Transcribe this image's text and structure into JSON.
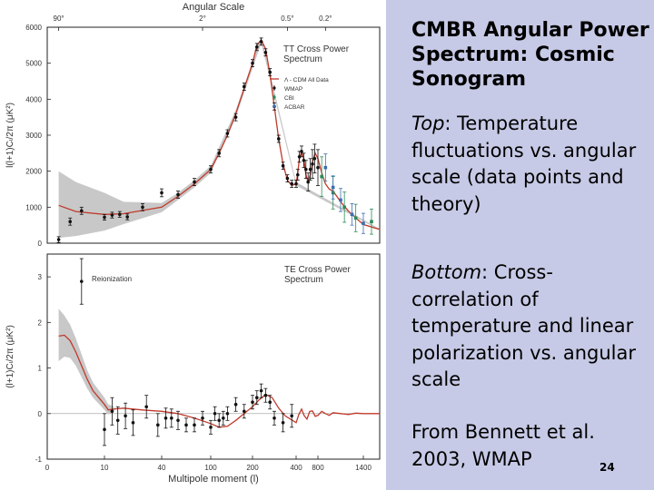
{
  "slide": {
    "title": "CMBR Angular Power Spectrum: Cosmic Sonogram",
    "top_label": "Top",
    "top_text": ": Temperature fluctuations vs. angular scale (data points and theory)",
    "bottom_label": "Bottom",
    "bottom_text": ": Cross-correlation of temperature and linear polarization vs. angular scale",
    "credit": "From Bennett et al. 2003, WMAP",
    "number": "24",
    "colors": {
      "panel_bg": "#c7cae6",
      "theory": "#c0392b",
      "band": "#c8c8c8",
      "cbi": "#2e8b57",
      "acbar": "#3a6fb0"
    }
  },
  "chart_data": [
    {
      "type": "line",
      "panel": "top",
      "title": "TT Cross Power Spectrum",
      "top_axis_title": "Angular Scale",
      "top_ticks": [
        {
          "l": 2,
          "label": "90°"
        },
        {
          "l": 90,
          "label": "2°"
        },
        {
          "l": 360,
          "label": "0.5°"
        },
        {
          "l": 900,
          "label": "0.2°"
        }
      ],
      "ylabel": "l(l+1)Cₗ/2π (μK²)",
      "ylim": [
        0,
        6000
      ],
      "yticks": [
        0,
        1000,
        2000,
        3000,
        4000,
        5000,
        6000
      ],
      "legend": [
        "Λ - CDM All Data",
        "WMAP",
        "CBI",
        "ACBAR"
      ],
      "theory": {
        "l": [
          2,
          5,
          10,
          20,
          40,
          60,
          80,
          100,
          120,
          140,
          160,
          180,
          200,
          220,
          240,
          260,
          280,
          300,
          320,
          340,
          360,
          380,
          400,
          430,
          460,
          500,
          540,
          580,
          620,
          660,
          700,
          750,
          800,
          850,
          900,
          950,
          1000,
          1100,
          1200,
          1300,
          1400,
          1500
        ],
        "value": [
          1050,
          880,
          800,
          820,
          1000,
          1300,
          1650,
          2050,
          2500,
          3000,
          3600,
          4300,
          5000,
          5500,
          5650,
          5400,
          4700,
          3800,
          2900,
          2200,
          1750,
          1600,
          1650,
          1950,
          2350,
          2550,
          2350,
          1900,
          1700,
          1900,
          2250,
          2500,
          2350,
          1950,
          1650,
          1500,
          1450,
          1150,
          900,
          700,
          520,
          380
        ]
      },
      "band": {
        "l": [
          2,
          5,
          10,
          20,
          40,
          60,
          80,
          100,
          160,
          240,
          400,
          1500
        ],
        "upper": [
          2000,
          1700,
          1400,
          1150,
          1120,
          1400,
          1750,
          2150,
          3700,
          5750,
          1700,
          400
        ],
        "lower": [
          150,
          200,
          350,
          530,
          860,
          1200,
          1550,
          1950,
          3500,
          5550,
          1600,
          360
        ]
      },
      "series": [
        {
          "name": "WMAP",
          "x": [
            2,
            4,
            6,
            10,
            14,
            18,
            22,
            30,
            40,
            60,
            80,
            100,
            120,
            140,
            160,
            180,
            200,
            220,
            240,
            260,
            280,
            300,
            320,
            340,
            360,
            380,
            400,
            430,
            460,
            500,
            540,
            580,
            620,
            660,
            700,
            740,
            800
          ],
          "y": [
            100,
            600,
            900,
            720,
            780,
            800,
            730,
            1000,
            1400,
            1350,
            1700,
            2050,
            2500,
            3050,
            3500,
            4350,
            5000,
            5450,
            5600,
            5300,
            4750,
            3800,
            2900,
            2150,
            1800,
            1650,
            1650,
            1900,
            2400,
            2550,
            2300,
            2050,
            1700,
            2050,
            2200,
            2350,
            2100
          ],
          "err": [
            80,
            100,
            100,
            80,
            80,
            80,
            80,
            100,
            110,
            100,
            100,
            100,
            100,
            100,
            100,
            100,
            100,
            100,
            100,
            100,
            100,
            100,
            100,
            100,
            100,
            100,
            100,
            150,
            150,
            150,
            200,
            250,
            250,
            300,
            400,
            400,
            500
          ]
        },
        {
          "name": "CBI",
          "x": [
            850,
            1000,
            1150,
            1300,
            1450
          ],
          "y": [
            1850,
            1400,
            1000,
            700,
            600
          ],
          "err": [
            550,
            450,
            420,
            380,
            350
          ]
        },
        {
          "name": "ACBAR",
          "x": [
            900,
            1000,
            1100,
            1250,
            1400
          ],
          "y": [
            2100,
            1550,
            1200,
            800,
            550
          ],
          "err": [
            380,
            320,
            320,
            300,
            280
          ]
        }
      ]
    },
    {
      "type": "line",
      "panel": "bottom",
      "title": "TE Cross Power Spectrum",
      "annotation": "Reionization",
      "xlabel": "Multipole moment (l)",
      "xticks": [
        0,
        10,
        40,
        100,
        200,
        400,
        800,
        1400
      ],
      "ylabel": "(l+1)Cₗ/2π (μK²)",
      "ylim": [
        -1,
        3.5
      ],
      "yticks": [
        -1,
        0,
        1,
        2,
        3
      ],
      "theory": {
        "l": [
          2,
          3,
          4,
          5,
          6,
          7,
          8,
          10,
          12,
          15,
          20,
          30,
          40,
          60,
          80,
          100,
          120,
          140,
          160,
          180,
          200,
          230,
          260,
          290,
          320,
          350,
          400,
          450,
          500,
          550,
          600,
          650,
          700,
          750,
          800,
          850,
          900,
          950,
          1000,
          1100,
          1200,
          1300,
          1400,
          1500
        ],
        "value": [
          1.7,
          1.72,
          1.6,
          1.35,
          1.05,
          0.75,
          0.5,
          0.2,
          0.08,
          0.1,
          0.12,
          0.08,
          0.05,
          0.0,
          -0.1,
          -0.22,
          -0.3,
          -0.28,
          -0.15,
          0.0,
          0.15,
          0.3,
          0.42,
          0.35,
          0.12,
          -0.05,
          -0.2,
          -0.02,
          0.1,
          -0.05,
          -0.12,
          0.05,
          0.06,
          -0.06,
          -0.04,
          0.05,
          0.0,
          -0.04,
          0.02,
          0.0,
          -0.02,
          0.01,
          0.0,
          0.0
        ]
      },
      "band": {
        "l": [
          2,
          3,
          4,
          5,
          6,
          7,
          8,
          10,
          12,
          15
        ],
        "upper": [
          2.3,
          2.15,
          1.95,
          1.65,
          1.3,
          0.95,
          0.68,
          0.35,
          0.2,
          0.16
        ],
        "lower": [
          1.15,
          1.25,
          1.22,
          1.05,
          0.8,
          0.55,
          0.35,
          0.08,
          -0.02,
          0.05
        ]
      },
      "series": [
        {
          "name": "WMAP",
          "x": [
            6,
            10,
            14,
            17,
            21,
            25,
            32,
            38,
            45,
            52,
            60,
            70,
            80,
            90,
            100,
            110,
            120,
            130,
            140,
            160,
            180,
            200,
            220,
            240,
            260,
            280,
            300,
            340,
            380
          ],
          "y": [
            2.9,
            -0.35,
            0.05,
            -0.15,
            -0.05,
            -0.2,
            0.15,
            -0.25,
            -0.1,
            -0.1,
            -0.15,
            -0.25,
            -0.25,
            -0.1,
            -0.3,
            0.0,
            -0.15,
            -0.1,
            0.0,
            0.2,
            0.05,
            0.25,
            0.35,
            0.5,
            0.4,
            0.25,
            -0.1,
            -0.2,
            -0.05
          ],
          "err": [
            0.5,
            0.35,
            0.3,
            0.3,
            0.28,
            0.28,
            0.25,
            0.25,
            0.22,
            0.2,
            0.2,
            0.15,
            0.15,
            0.15,
            0.15,
            0.15,
            0.15,
            0.15,
            0.15,
            0.15,
            0.15,
            0.15,
            0.15,
            0.15,
            0.15,
            0.15,
            0.15,
            0.2,
            0.25
          ]
        }
      ]
    }
  ]
}
